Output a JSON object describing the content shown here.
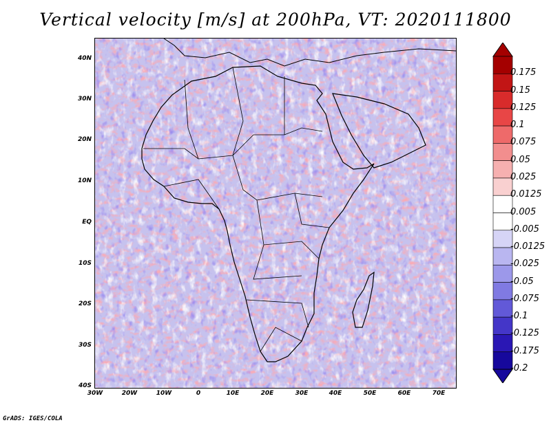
{
  "title": "Vertical velocity [m/s] at 200hPa, VT: 2020111800",
  "credit": "GrADS: IGES/COLA",
  "latitude_labels": [
    "40N",
    "30N",
    "20N",
    "10N",
    "EQ",
    "10S",
    "20S",
    "30S",
    "40S"
  ],
  "longitude_labels": [
    "30W",
    "20W",
    "10W",
    "0",
    "10E",
    "20E",
    "30E",
    "40E",
    "50E",
    "60E",
    "70E"
  ],
  "colorbar": {
    "labels": [
      "0.175",
      "0.15",
      "0.125",
      "0.1",
      "0.075",
      "0.05",
      "0.025",
      "0.0125",
      "0.005",
      "-0.005",
      "-0.0125",
      "-0.025",
      "-0.05",
      "-0.075",
      "-0.1",
      "-0.125",
      "-0.175",
      "-0.2"
    ],
    "colors": [
      "#a40000",
      "#c21515",
      "#d82b2b",
      "#e84646",
      "#ee6a6a",
      "#f28e8e",
      "#f6b0b0",
      "#f9d0d0",
      "#ffffff",
      "#ffffff",
      "#d6d4f6",
      "#b9b6f0",
      "#9c98ea",
      "#807ae2",
      "#6259d8",
      "#4436c8",
      "#2a17b4",
      "#16089c"
    ]
  }
}
